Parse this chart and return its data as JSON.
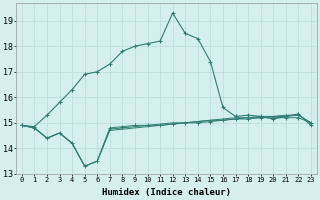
{
  "xlabel": "Humidex (Indice chaleur)",
  "ylabel": "",
  "background_color": "#d5efee",
  "line_color": "#2d7d74",
  "grid_color": "#b8dbd9",
  "x_values": [
    0,
    1,
    2,
    3,
    4,
    5,
    6,
    7,
    8,
    9,
    10,
    11,
    12,
    13,
    14,
    15,
    16,
    17,
    18,
    19,
    20,
    21,
    22,
    23
  ],
  "series1": [
    14.9,
    14.85,
    15.3,
    15.8,
    16.3,
    16.9,
    17.0,
    17.3,
    17.8,
    18.0,
    18.1,
    18.2,
    19.3,
    18.5,
    18.3,
    17.4,
    15.6,
    15.25,
    15.3,
    15.25,
    15.15,
    15.25,
    15.35,
    14.9
  ],
  "series2": [
    14.9,
    14.8,
    14.4,
    14.6,
    14.2,
    13.3,
    13.5,
    14.8,
    14.85,
    14.9,
    14.9,
    14.9,
    14.95,
    15.0,
    15.0,
    15.05,
    15.1,
    15.15,
    15.15,
    15.2,
    15.2,
    15.2,
    15.2,
    15.0
  ],
  "series3": [
    14.9,
    14.8,
    14.4,
    14.6,
    14.2,
    13.3,
    13.5,
    14.75,
    14.8,
    14.85,
    14.9,
    14.95,
    15.0,
    15.0,
    15.05,
    15.1,
    15.1,
    15.15,
    15.2,
    15.2,
    15.25,
    15.25,
    15.3,
    15.0
  ],
  "series4": [
    14.9,
    14.8,
    14.4,
    14.6,
    14.2,
    13.3,
    13.5,
    14.7,
    14.75,
    14.8,
    14.85,
    14.9,
    14.95,
    15.0,
    15.05,
    15.1,
    15.15,
    15.2,
    15.2,
    15.25,
    15.25,
    15.3,
    15.3,
    15.0
  ],
  "ylim": [
    13.0,
    19.7
  ],
  "yticks": [
    13,
    14,
    15,
    16,
    17,
    18,
    19
  ],
  "xlim": [
    -0.5,
    23.5
  ]
}
